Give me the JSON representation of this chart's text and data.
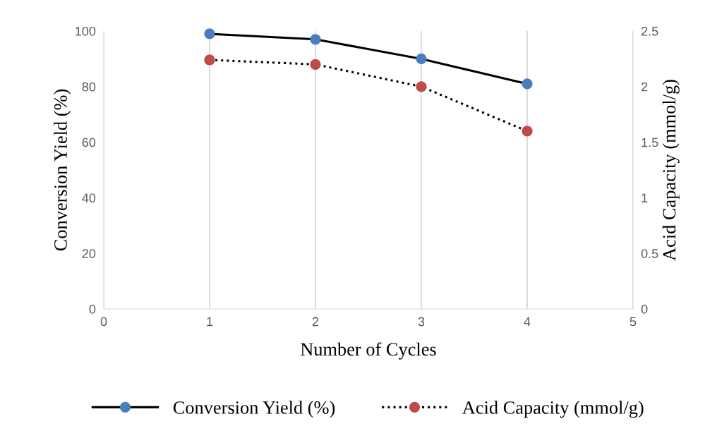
{
  "chart_data": {
    "type": "line",
    "xlabel": "Number of Cycles",
    "ylabel": "Conversion Yield (%)",
    "y2label": "Acid Capacity (mmol/g)",
    "x": [
      1,
      2,
      3,
      4
    ],
    "series": [
      {
        "name": "Conversion Yield (%)",
        "color": "#4a7ebb",
        "values": [
          99,
          97,
          90,
          81
        ],
        "line_style": "solid"
      },
      {
        "name": "Acid Capacity (mmol/g)",
        "color": "#be4b48",
        "values": [
          2.24,
          2.2,
          2.0,
          1.6
        ],
        "line_style": "dotted",
        "axis": "y2"
      }
    ],
    "xlim": [
      0,
      5
    ],
    "xticks": [
      0,
      1,
      2,
      3,
      4,
      5
    ],
    "ylim": [
      0,
      100
    ],
    "yticks": [
      0,
      20,
      40,
      60,
      80,
      100
    ],
    "y2lim": [
      0,
      2.5
    ],
    "y2ticks": [
      0,
      0.5,
      1,
      1.5,
      2,
      2.5
    ],
    "grid": "x",
    "legend": "bottom",
    "marker": "circle"
  }
}
